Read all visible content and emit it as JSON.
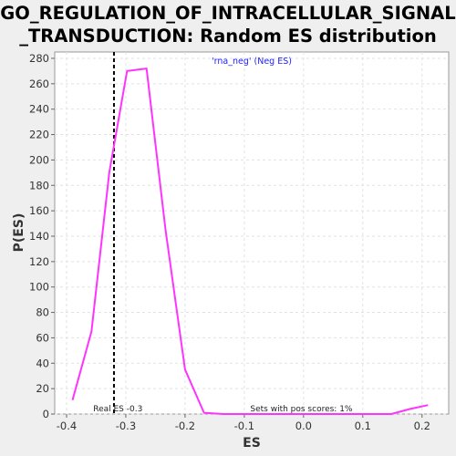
{
  "chart_data": {
    "type": "line",
    "title_lines": [
      "GO_REGULATION_OF_INTRACELLULAR_SIGNAL",
      "_TRANSDUCTION: Random ES distribution"
    ],
    "xlabel": "ES",
    "ylabel": "P(ES)",
    "xlim": [
      -0.42,
      0.245
    ],
    "ylim": [
      0,
      285
    ],
    "x_ticks": [
      -0.4,
      -0.3,
      -0.2,
      -0.1,
      0.0,
      0.1,
      0.2
    ],
    "x_tick_labels": [
      "-0.4",
      "-0.3",
      "-0.2",
      "-0.1",
      "0.0",
      "0.1",
      "0.2"
    ],
    "y_ticks": [
      0,
      20,
      40,
      60,
      80,
      100,
      120,
      140,
      160,
      180,
      200,
      220,
      240,
      260,
      280
    ],
    "y_tick_labels": [
      "0",
      "20",
      "40",
      "60",
      "80",
      "100",
      "120",
      "140",
      "160",
      "180",
      "200",
      "220",
      "240",
      "260",
      "280"
    ],
    "grid": true,
    "legend_position": "top-center",
    "series": [
      {
        "name": "'rna_neg' (Neg ES)",
        "color": "#ff33ff",
        "x": [
          -0.39,
          -0.358,
          -0.328,
          -0.298,
          -0.265,
          -0.233,
          -0.2,
          -0.168,
          -0.135,
          -0.103,
          -0.07,
          -0.038,
          -0.005,
          0.027,
          0.06,
          0.092,
          0.125,
          0.148,
          0.18,
          0.21
        ],
        "y": [
          11,
          65,
          190,
          270,
          272,
          145,
          35,
          1,
          0,
          0,
          0,
          0,
          0,
          0,
          0,
          0,
          0,
          0,
          4,
          7
        ]
      }
    ],
    "reference_line": {
      "x": -0.32,
      "color": "#000000",
      "style": "dashed"
    },
    "annotations": [
      {
        "text": "Real ES -0.3",
        "x": -0.355,
        "y": 2
      },
      {
        "text": "Sets with pos scores: 1%",
        "x": -0.09,
        "y": 2
      }
    ]
  }
}
